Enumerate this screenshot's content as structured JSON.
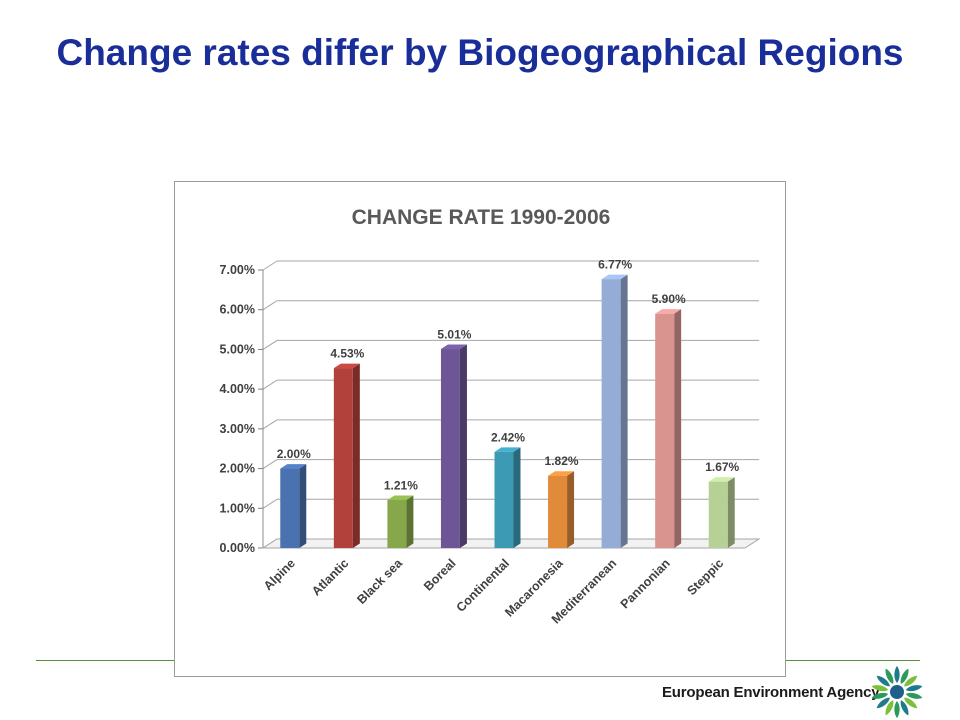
{
  "slide": {
    "title": "Change rates differ by Biogeographical Regions"
  },
  "footer": {
    "agency_name": "European Environment Agency",
    "logo_icon": "eea-sun-logo-icon",
    "rule_color": "#5a8f3a"
  },
  "chart_data": {
    "type": "bar",
    "title": "CHANGE RATE 1990-2006",
    "categories": [
      "Alpine",
      "Atlantic",
      "Black sea",
      "Boreal",
      "Continental",
      "Macaronesia",
      "Mediterranean",
      "Pannonian",
      "Steppic"
    ],
    "values": [
      2.0,
      4.53,
      1.21,
      5.01,
      2.42,
      1.82,
      6.77,
      5.9,
      1.67
    ],
    "data_labels": [
      "2.00%",
      "4.53%",
      "1.21%",
      "5.01%",
      "2.42%",
      "1.82%",
      "6.77%",
      "5.90%",
      "1.67%"
    ],
    "colors": [
      "#4a72b0",
      "#b2403b",
      "#86a84a",
      "#6d5596",
      "#3d9ab4",
      "#e08a3a",
      "#94acd6",
      "#d99490",
      "#b6d095"
    ],
    "yticks": [
      "0.00%",
      "1.00%",
      "2.00%",
      "3.00%",
      "4.00%",
      "5.00%",
      "6.00%",
      "7.00%"
    ],
    "ylim": [
      0,
      7
    ],
    "xlabel": "",
    "ylabel": "",
    "grid": true,
    "legend": "none",
    "style": "3d-column"
  }
}
